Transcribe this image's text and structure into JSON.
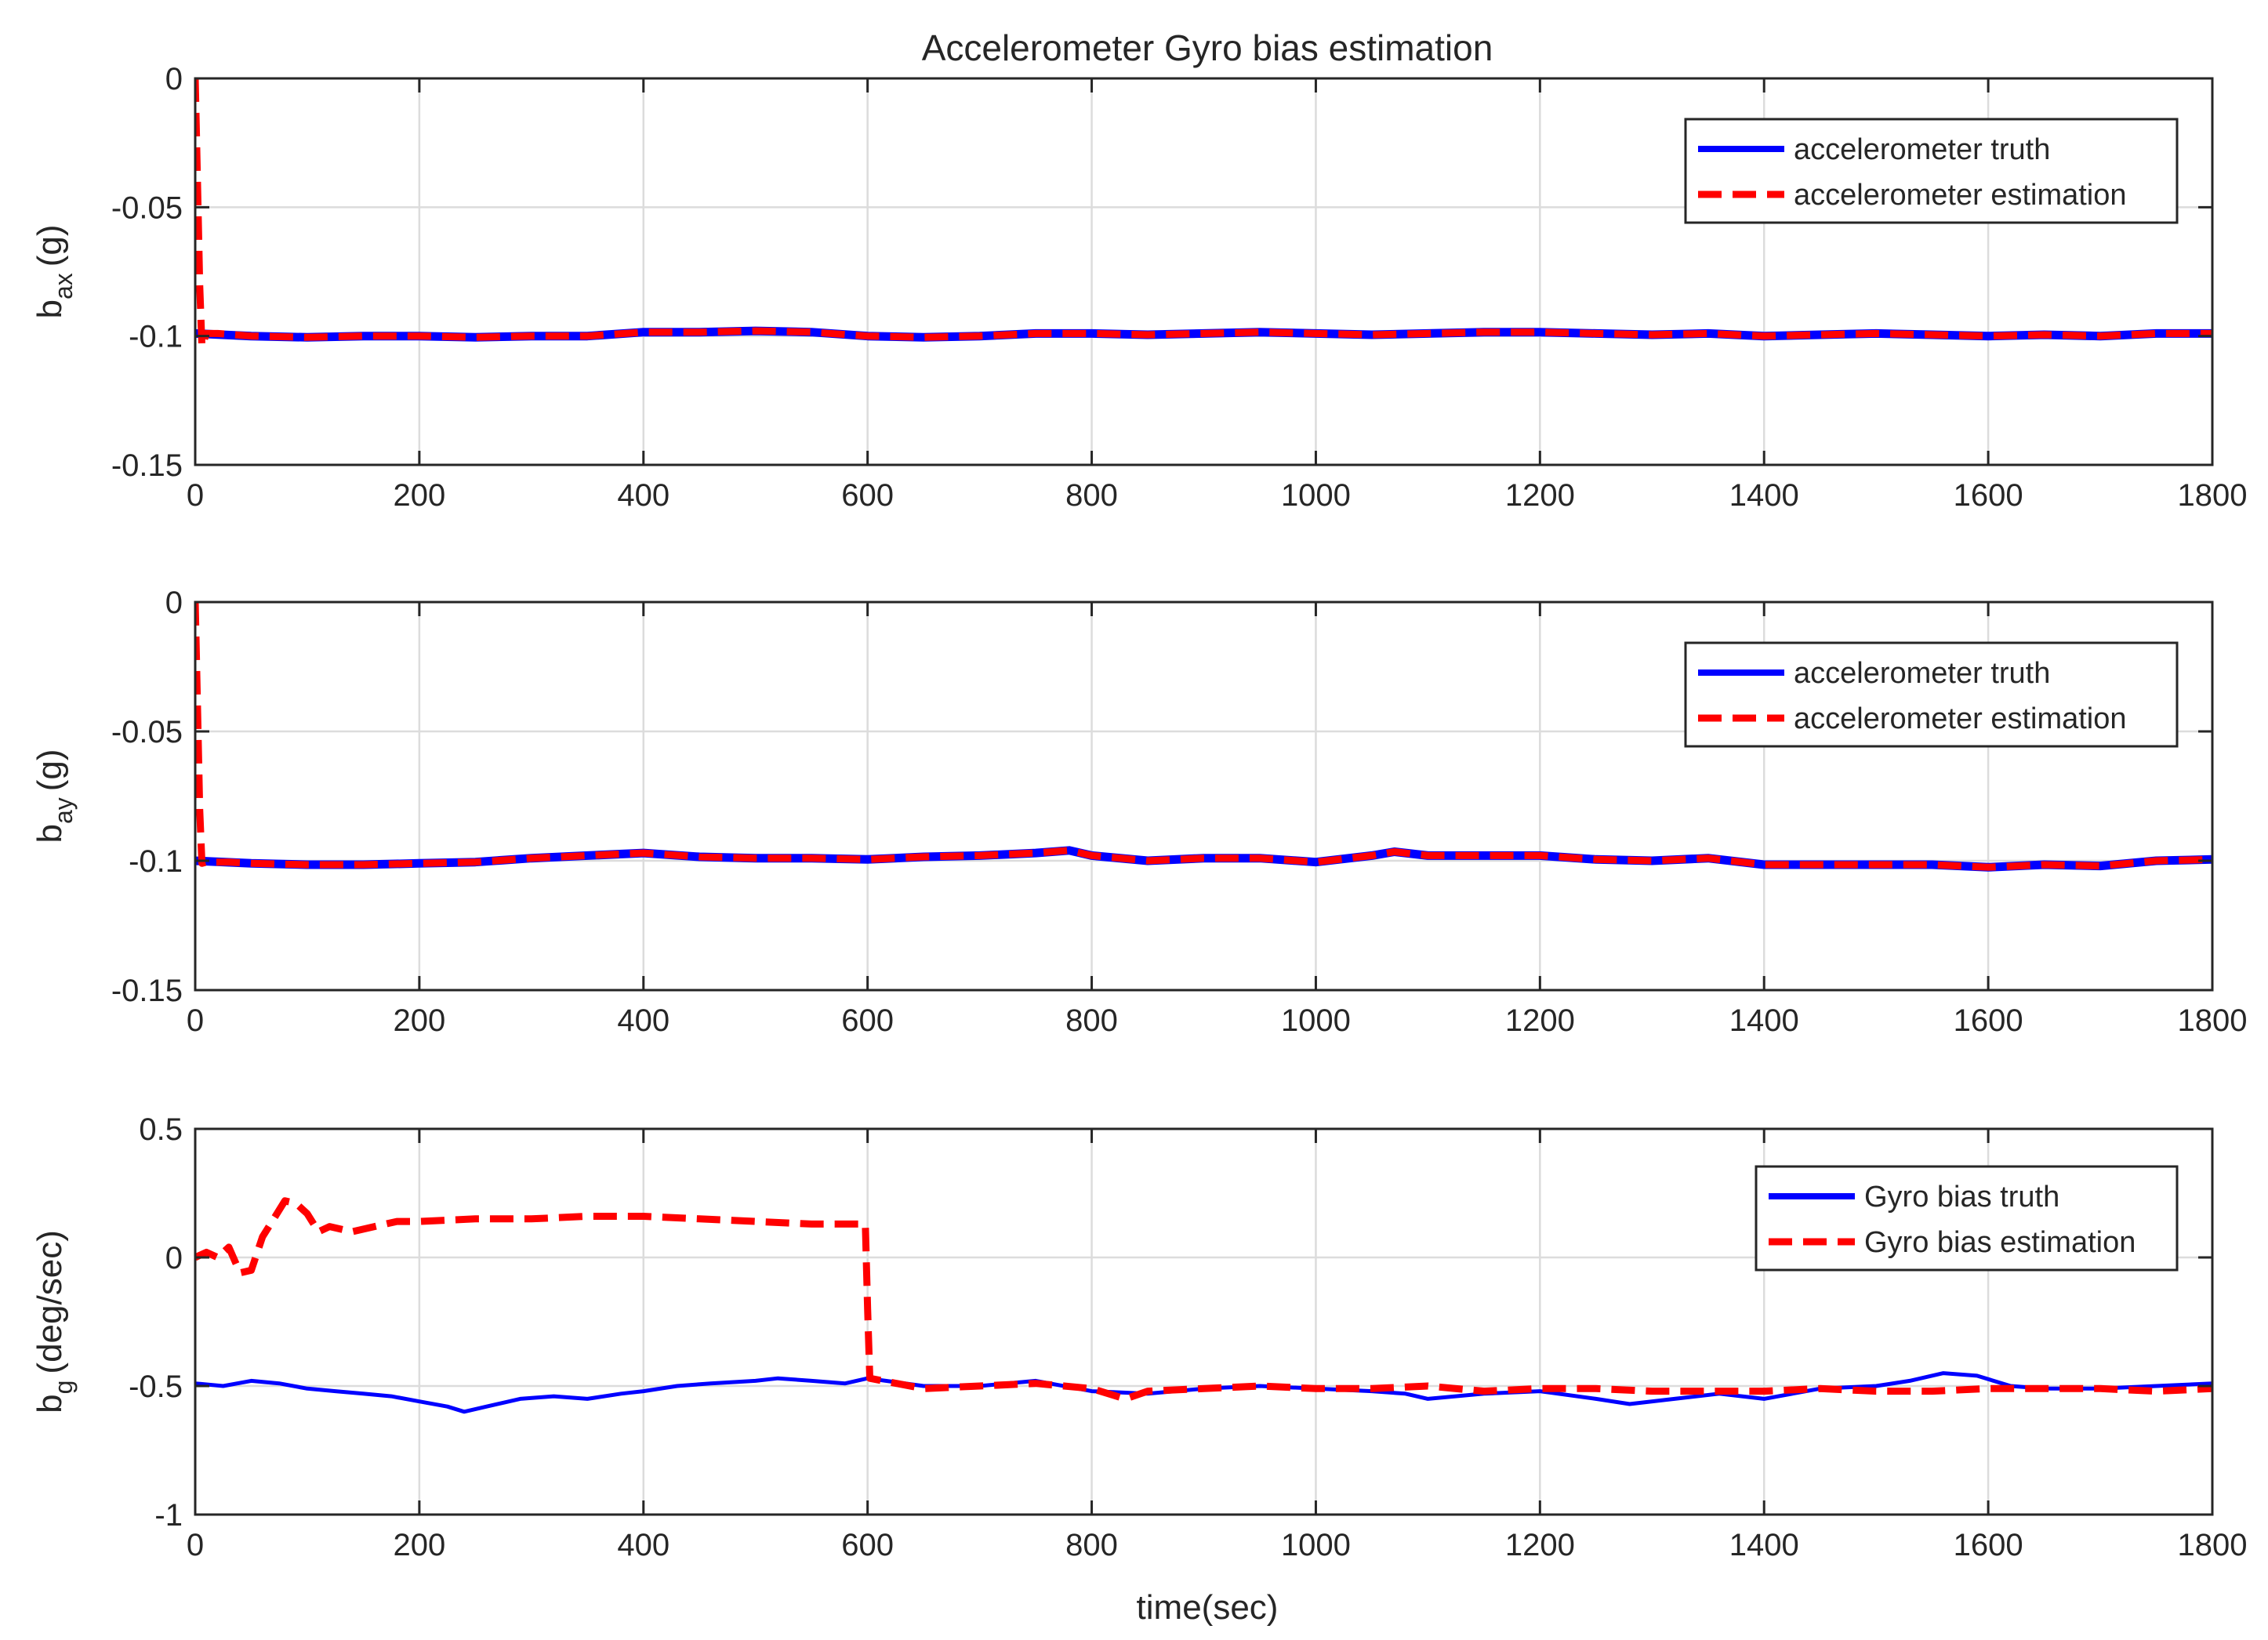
{
  "chart_data": {
    "type": "line",
    "title": "Accelerometer Gyro bias estimation",
    "xlabel": "time(sec)",
    "x_ticks": [
      "0",
      "200",
      "400",
      "600",
      "800",
      "1000",
      "1200",
      "1400",
      "1600",
      "1800"
    ],
    "xlim": [
      0,
      1800
    ],
    "colors": {
      "truth": "#0000ff",
      "estimation": "#ff0000"
    },
    "subplots": [
      {
        "ylabel_main": "b",
        "ylabel_sub": "ax",
        "ylabel_unit": "(g)",
        "ylim": [
          -0.15,
          0
        ],
        "y_ticks": [
          0,
          -0.05,
          -0.1,
          -0.15
        ],
        "y_tick_labels": [
          "0",
          "-0.05",
          "-0.1",
          "-0.15"
        ],
        "legend_location": "top-right",
        "series": [
          {
            "name": "accelerometer truth",
            "style": "solid",
            "x": [
              0,
              50,
              100,
              150,
              200,
              250,
              300,
              350,
              400,
              450,
              500,
              550,
              600,
              650,
              700,
              750,
              800,
              850,
              900,
              950,
              1000,
              1050,
              1100,
              1150,
              1200,
              1250,
              1300,
              1350,
              1400,
              1450,
              1500,
              1550,
              1600,
              1650,
              1700,
              1750,
              1800
            ],
            "y": [
              -0.099,
              -0.1,
              -0.1005,
              -0.1,
              -0.1,
              -0.1005,
              -0.1,
              -0.1,
              -0.0985,
              -0.0985,
              -0.098,
              -0.0985,
              -0.1,
              -0.1005,
              -0.1,
              -0.099,
              -0.099,
              -0.0995,
              -0.099,
              -0.0985,
              -0.099,
              -0.0995,
              -0.099,
              -0.0985,
              -0.0985,
              -0.099,
              -0.0995,
              -0.099,
              -0.1,
              -0.0995,
              -0.099,
              -0.0995,
              -0.1,
              -0.0995,
              -0.1,
              -0.099,
              -0.099
            ]
          },
          {
            "name": "accelerometer estimation",
            "style": "dashed",
            "x": [
              0,
              2,
              4,
              6,
              10,
              20,
              50,
              100,
              150,
              200,
              250,
              300,
              350,
              400,
              450,
              500,
              550,
              600,
              650,
              700,
              750,
              800,
              850,
              900,
              950,
              1000,
              1050,
              1100,
              1150,
              1200,
              1250,
              1300,
              1350,
              1400,
              1450,
              1500,
              1550,
              1600,
              1650,
              1700,
              1750,
              1800
            ],
            "y": [
              0,
              -0.04,
              -0.08,
              -0.104,
              -0.099,
              -0.099,
              -0.1,
              -0.1005,
              -0.1,
              -0.1,
              -0.1005,
              -0.1,
              -0.1,
              -0.0985,
              -0.0985,
              -0.098,
              -0.0985,
              -0.1,
              -0.1005,
              -0.1,
              -0.099,
              -0.099,
              -0.0995,
              -0.099,
              -0.0985,
              -0.099,
              -0.0995,
              -0.099,
              -0.0985,
              -0.0985,
              -0.099,
              -0.0995,
              -0.099,
              -0.1,
              -0.0995,
              -0.099,
              -0.0995,
              -0.1,
              -0.0995,
              -0.1,
              -0.099,
              -0.099
            ]
          }
        ]
      },
      {
        "ylabel_main": "b",
        "ylabel_sub": "ay",
        "ylabel_unit": "(g)",
        "ylim": [
          -0.15,
          0
        ],
        "y_ticks": [
          0,
          -0.05,
          -0.1,
          -0.15
        ],
        "y_tick_labels": [
          "0",
          "-0.05",
          "-0.1",
          "-0.15"
        ],
        "legend_location": "top-right",
        "series": [
          {
            "name": "accelerometer truth",
            "style": "solid",
            "x": [
              0,
              50,
              100,
              150,
              200,
              250,
              300,
              350,
              400,
              450,
              500,
              550,
              600,
              650,
              700,
              750,
              780,
              800,
              850,
              900,
              950,
              1000,
              1050,
              1070,
              1100,
              1150,
              1200,
              1250,
              1300,
              1350,
              1400,
              1450,
              1500,
              1550,
              1600,
              1650,
              1700,
              1750,
              1800
            ],
            "y": [
              -0.1,
              -0.101,
              -0.1015,
              -0.1015,
              -0.101,
              -0.1005,
              -0.099,
              -0.098,
              -0.097,
              -0.0985,
              -0.099,
              -0.099,
              -0.0995,
              -0.0985,
              -0.098,
              -0.097,
              -0.096,
              -0.098,
              -0.1,
              -0.099,
              -0.099,
              -0.1005,
              -0.098,
              -0.0965,
              -0.098,
              -0.098,
              -0.098,
              -0.0995,
              -0.1,
              -0.099,
              -0.1015,
              -0.1015,
              -0.1015,
              -0.1015,
              -0.1025,
              -0.1015,
              -0.102,
              -0.1,
              -0.0995
            ]
          },
          {
            "name": "accelerometer estimation",
            "style": "dashed",
            "x": [
              0,
              2,
              4,
              6,
              10,
              30,
              50,
              100,
              150,
              200,
              250,
              300,
              350,
              400,
              450,
              500,
              550,
              600,
              650,
              700,
              750,
              780,
              800,
              850,
              900,
              950,
              1000,
              1050,
              1070,
              1100,
              1150,
              1200,
              1250,
              1300,
              1350,
              1400,
              1450,
              1500,
              1550,
              1600,
              1650,
              1700,
              1750,
              1800
            ],
            "y": [
              0,
              -0.04,
              -0.08,
              -0.101,
              -0.1005,
              -0.1005,
              -0.101,
              -0.1015,
              -0.1015,
              -0.101,
              -0.1005,
              -0.099,
              -0.098,
              -0.097,
              -0.0985,
              -0.099,
              -0.099,
              -0.0995,
              -0.0985,
              -0.098,
              -0.097,
              -0.096,
              -0.098,
              -0.1,
              -0.099,
              -0.099,
              -0.1005,
              -0.098,
              -0.0965,
              -0.098,
              -0.098,
              -0.098,
              -0.0995,
              -0.1,
              -0.099,
              -0.1015,
              -0.1015,
              -0.1015,
              -0.1015,
              -0.1025,
              -0.1015,
              -0.102,
              -0.1,
              -0.0995
            ]
          }
        ]
      },
      {
        "ylabel_main": "b",
        "ylabel_sub": "g",
        "ylabel_unit": "(deg/sec)",
        "ylim": [
          -1,
          0.5
        ],
        "y_ticks": [
          0.5,
          0,
          -0.5,
          -1
        ],
        "y_tick_labels": [
          "0.5",
          "0",
          "-0.5",
          "-1"
        ],
        "legend_location": "top-right",
        "series": [
          {
            "name": "Gyro bias truth",
            "style": "solid",
            "x": [
              0,
              25,
              50,
              75,
              100,
              125,
              150,
              175,
              200,
              225,
              240,
              260,
              290,
              320,
              350,
              380,
              400,
              430,
              460,
              500,
              520,
              550,
              580,
              600,
              650,
              700,
              750,
              800,
              850,
              900,
              950,
              1000,
              1050,
              1080,
              1100,
              1150,
              1200,
              1250,
              1280,
              1320,
              1360,
              1400,
              1450,
              1500,
              1530,
              1560,
              1590,
              1620,
              1650,
              1700,
              1750,
              1800
            ],
            "y": [
              -0.49,
              -0.5,
              -0.48,
              -0.49,
              -0.51,
              -0.52,
              -0.53,
              -0.54,
              -0.56,
              -0.58,
              -0.6,
              -0.58,
              -0.55,
              -0.54,
              -0.55,
              -0.53,
              -0.52,
              -0.5,
              -0.49,
              -0.48,
              -0.47,
              -0.48,
              -0.49,
              -0.47,
              -0.5,
              -0.5,
              -0.48,
              -0.52,
              -0.53,
              -0.51,
              -0.5,
              -0.51,
              -0.52,
              -0.53,
              -0.55,
              -0.53,
              -0.52,
              -0.55,
              -0.57,
              -0.55,
              -0.53,
              -0.55,
              -0.51,
              -0.5,
              -0.48,
              -0.45,
              -0.46,
              -0.5,
              -0.51,
              -0.51,
              -0.5,
              -0.49
            ]
          },
          {
            "name": "Gyro bias estimation",
            "style": "dashed",
            "x": [
              0,
              10,
              20,
              30,
              40,
              50,
              60,
              70,
              80,
              90,
              100,
              110,
              120,
              140,
              160,
              180,
              200,
              250,
              300,
              350,
              400,
              450,
              500,
              550,
              598,
              600,
              602,
              650,
              700,
              750,
              800,
              830,
              850,
              900,
              950,
              1000,
              1050,
              1100,
              1150,
              1200,
              1250,
              1300,
              1350,
              1400,
              1450,
              1500,
              1550,
              1600,
              1650,
              1700,
              1750,
              1800
            ],
            "y": [
              0,
              0.02,
              0.0,
              0.04,
              -0.06,
              -0.05,
              0.08,
              0.15,
              0.22,
              0.21,
              0.17,
              0.1,
              0.12,
              0.1,
              0.12,
              0.14,
              0.14,
              0.15,
              0.15,
              0.16,
              0.16,
              0.15,
              0.14,
              0.13,
              0.13,
              -0.2,
              -0.47,
              -0.51,
              -0.5,
              -0.49,
              -0.51,
              -0.55,
              -0.52,
              -0.51,
              -0.5,
              -0.51,
              -0.51,
              -0.5,
              -0.52,
              -0.51,
              -0.51,
              -0.52,
              -0.52,
              -0.52,
              -0.51,
              -0.52,
              -0.52,
              -0.51,
              -0.51,
              -0.51,
              -0.52,
              -0.51
            ]
          }
        ]
      }
    ]
  }
}
